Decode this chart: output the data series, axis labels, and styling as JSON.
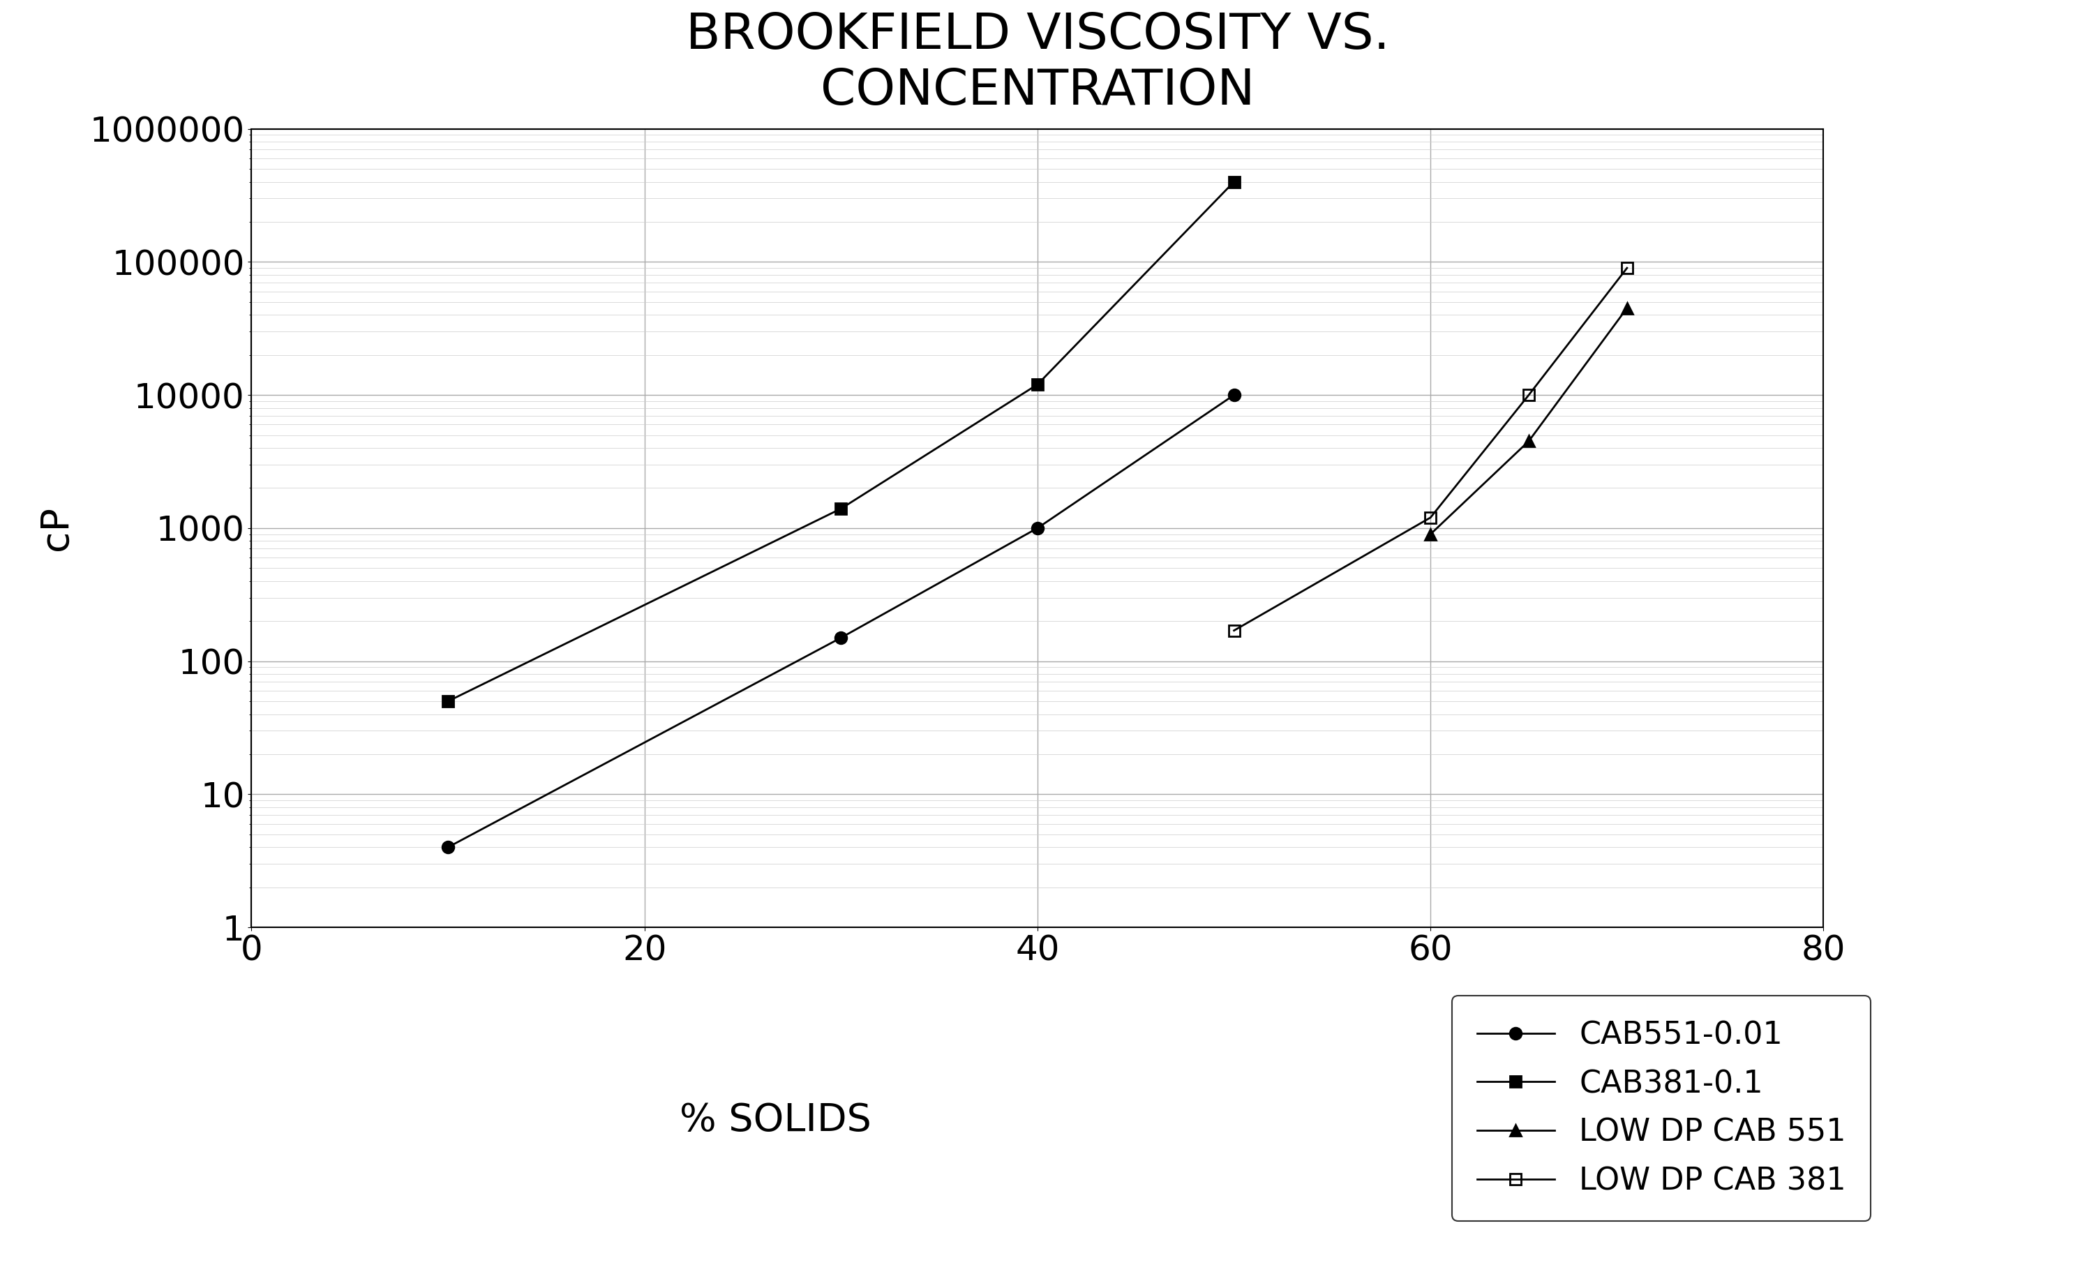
{
  "title": "BROOKFIELD VISCOSITY VS.\nCONCENTRATION",
  "xlabel": "% SOLIDS",
  "ylabel": "cP",
  "xlim": [
    0,
    80
  ],
  "ylim_log": [
    1,
    1000000
  ],
  "series": [
    {
      "label": "CAB551-0.01",
      "x": [
        10,
        30,
        40,
        50
      ],
      "y": [
        4,
        150,
        1000,
        10000
      ],
      "marker": "o",
      "color": "#000000",
      "linestyle": "-",
      "markersize": 12,
      "fillstyle": "full"
    },
    {
      "label": "CAB381-0.1",
      "x": [
        10,
        30,
        40,
        50
      ],
      "y": [
        50,
        1400,
        12000,
        400000
      ],
      "marker": "s",
      "color": "#000000",
      "linestyle": "-",
      "markersize": 12,
      "fillstyle": "full"
    },
    {
      "label": "LOW DP CAB 551",
      "x": [
        60,
        65,
        70
      ],
      "y": [
        900,
        4500,
        45000
      ],
      "marker": "^",
      "color": "#000000",
      "linestyle": "-",
      "markersize": 12,
      "fillstyle": "full"
    },
    {
      "label": "LOW DP CAB 381",
      "x": [
        50,
        60,
        65,
        70
      ],
      "y": [
        170,
        1200,
        10000,
        90000
      ],
      "marker": "s",
      "color": "#000000",
      "linestyle": "-",
      "markersize": 12,
      "fillstyle": "none"
    }
  ],
  "xticks": [
    0,
    20,
    40,
    60,
    80
  ],
  "yticks": [
    1,
    10,
    100,
    1000,
    10000,
    100000,
    1000000
  ],
  "ytick_labels": [
    "1",
    "10",
    "100",
    "1000",
    "10000",
    "100000",
    "1000000"
  ],
  "background_color": "#ffffff",
  "title_fontsize": 52,
  "axis_label_fontsize": 40,
  "tick_fontsize": 36,
  "legend_fontsize": 32,
  "linewidth": 2.0,
  "markeredgewidth": 2.0
}
